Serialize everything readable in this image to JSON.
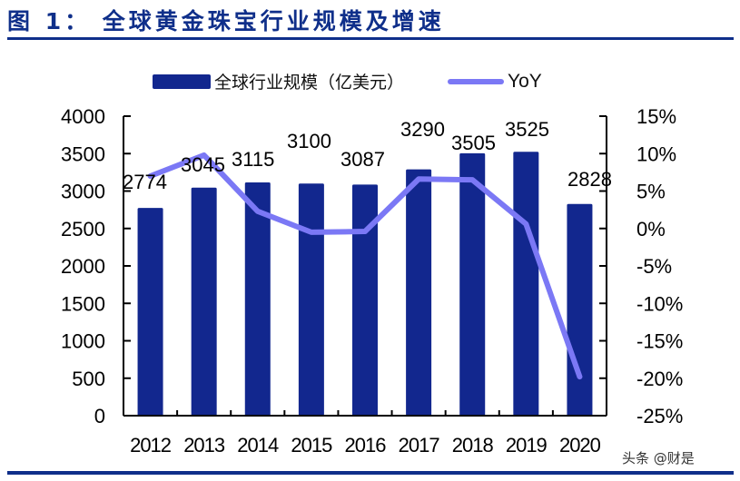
{
  "header": {
    "title": "图 1：  全球黄金珠宝行业规模及增速"
  },
  "legend": {
    "bar_label": "全球行业规模（亿美元）",
    "line_label": "YoY"
  },
  "watermark": "头条 @财是",
  "colors": {
    "bar": "#12278e",
    "line": "#7b78f5",
    "title": "#0f2f8a",
    "rule": "#0f2f8a"
  },
  "chart_data": {
    "type": "bar+line",
    "title": "全球黄金珠宝行业规模及增速",
    "categories": [
      "2012",
      "2013",
      "2014",
      "2015",
      "2016",
      "2017",
      "2018",
      "2019",
      "2020"
    ],
    "series": [
      {
        "name": "全球行业规模（亿美元）",
        "type": "bar",
        "axis": "left",
        "values": [
          2774,
          3045,
          3115,
          3100,
          3087,
          3290,
          3505,
          3525,
          2828
        ],
        "data_labels": [
          "2774",
          "3045",
          "3115",
          "3100",
          "3087",
          "3290",
          "3505",
          "3525",
          "2828"
        ]
      },
      {
        "name": "YoY",
        "type": "line",
        "axis": "right",
        "values": [
          7.0,
          9.8,
          2.3,
          -0.5,
          -0.4,
          6.6,
          6.5,
          0.6,
          -19.8
        ],
        "unit": "%"
      }
    ],
    "left_axis": {
      "ylim": [
        0,
        4000
      ],
      "ticks": [
        "0",
        "500",
        "1000",
        "1500",
        "2000",
        "2500",
        "3000",
        "3500",
        "4000"
      ]
    },
    "right_axis": {
      "ylim": [
        -25,
        15
      ],
      "ticks": [
        "-25%",
        "-20%",
        "-15%",
        "-10%",
        "-5%",
        "0%",
        "5%",
        "10%",
        "15%"
      ]
    },
    "xlabel": "",
    "ylabel": "",
    "grid": false,
    "legend_position": "top"
  }
}
